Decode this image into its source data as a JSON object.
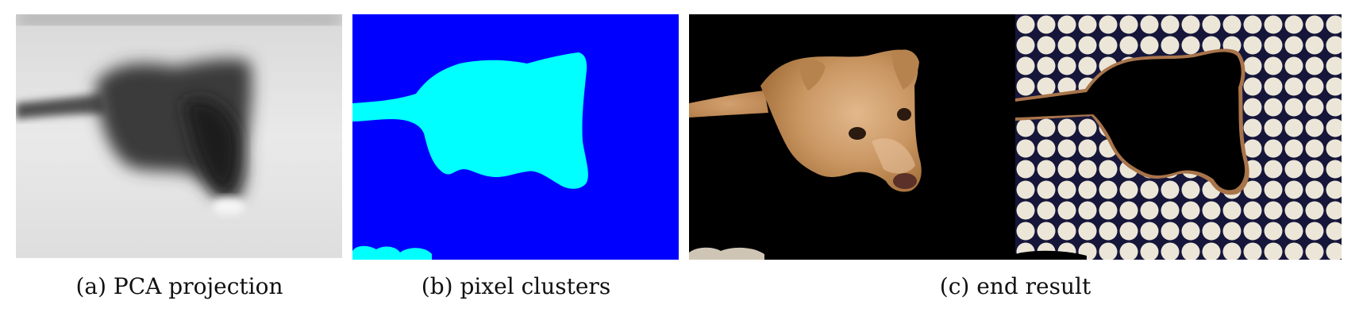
{
  "figure": {
    "panels": [
      {
        "id": "a",
        "caption": "(a) PCA projection",
        "content": "grayscale-pca-map"
      },
      {
        "id": "b",
        "caption": "(b) pixel clusters",
        "content": "two-cluster-mask",
        "colors": {
          "background": "#0000ff",
          "foreground": "#00ffff"
        }
      },
      {
        "id": "c",
        "caption": "(c) end result",
        "content": "foreground-background-split"
      }
    ]
  }
}
